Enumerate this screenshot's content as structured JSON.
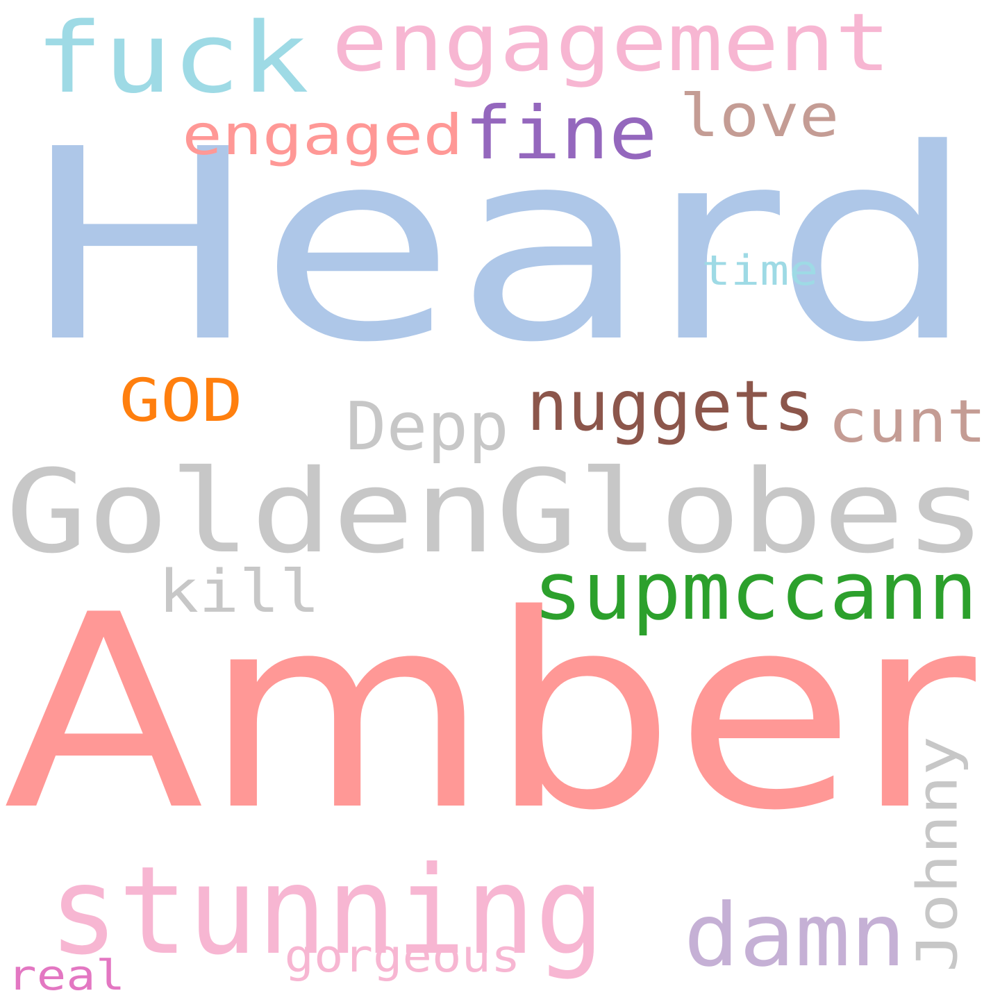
{
  "words": [
    {
      "key": "heard",
      "text": "Heard",
      "color": "#aec7e8"
    },
    {
      "key": "amber",
      "text": "Amber",
      "color": "#ff9896"
    },
    {
      "key": "goldenglobes",
      "text": "GoldenGlobes",
      "color": "#c7c7c7"
    },
    {
      "key": "stunning",
      "text": "stunning",
      "color": "#f7b6d2"
    },
    {
      "key": "engagement",
      "text": "engagement",
      "color": "#f7b6d2"
    },
    {
      "key": "fuck",
      "text": "fuck",
      "color": "#9edae5"
    },
    {
      "key": "supmccann",
      "text": "supmccann",
      "color": "#2ca02c"
    },
    {
      "key": "nuggets",
      "text": "nuggets",
      "color": "#8c564b"
    },
    {
      "key": "damn",
      "text": "damn",
      "color": "#c5b0d5"
    },
    {
      "key": "fine",
      "text": "fine",
      "color": "#9467bd"
    },
    {
      "key": "engaged",
      "text": "engaged",
      "color": "#ff9896"
    },
    {
      "key": "love",
      "text": "love",
      "color": "#c49c94"
    },
    {
      "key": "cunt",
      "text": "cunt",
      "color": "#c49c94"
    },
    {
      "key": "depp",
      "text": "Depp",
      "color": "#c7c7c7"
    },
    {
      "key": "god",
      "text": "GOD",
      "color": "#ff7f0e"
    },
    {
      "key": "kill",
      "text": "kill",
      "color": "#c7c7c7"
    },
    {
      "key": "johnny",
      "text": "Johnny",
      "color": "#c7c7c7"
    },
    {
      "key": "time",
      "text": "time",
      "color": "#9edae5"
    },
    {
      "key": "gorgeous",
      "text": "gorgeous",
      "color": "#f7b6d2"
    },
    {
      "key": "real",
      "text": "real",
      "color": "#e377c2"
    }
  ]
}
